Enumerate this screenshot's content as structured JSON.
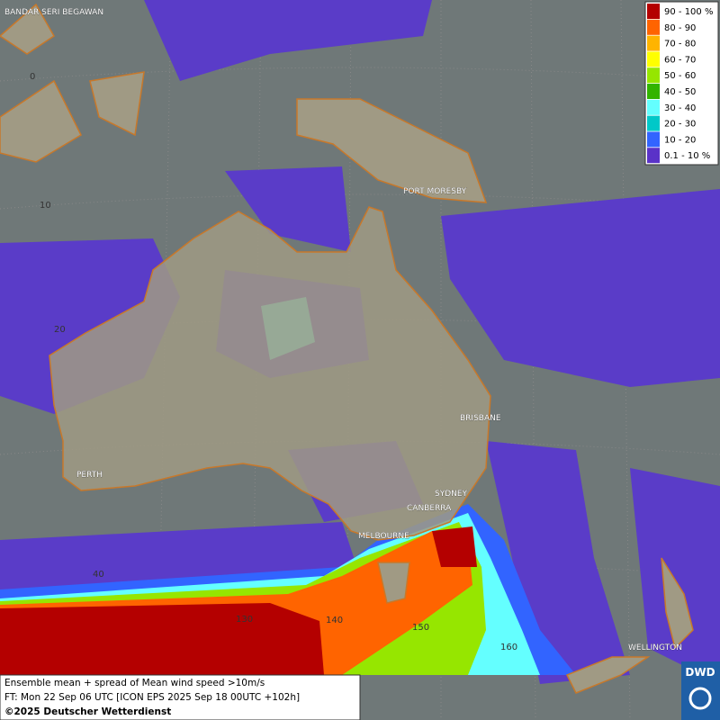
{
  "legend": {
    "items": [
      {
        "label": "90 - 100 %"
      },
      {
        "label": "80 - 90"
      },
      {
        "label": "70 - 80"
      },
      {
        "label": "60 - 70"
      },
      {
        "label": "50 - 60"
      },
      {
        "label": "40 - 50"
      },
      {
        "label": "30 - 40"
      },
      {
        "label": "20 - 30"
      },
      {
        "label": "10 - 20"
      },
      {
        "label": "0.1 - 10 %"
      }
    ]
  },
  "places": [
    "BANDAR SERI BEGAWAN",
    "PORT MORESBY",
    "BRISBANE",
    "PERTH",
    "SYDNEY",
    "CANBERRA",
    "MELBOURNE",
    "WELLINGTON"
  ],
  "grid_labels": [
    "0",
    "10",
    "20",
    "40",
    "130",
    "140",
    "150",
    "160"
  ],
  "caption": {
    "line1": "Ensemble mean + spread of Mean wind speed >10m/s",
    "line2": "FT: Mon 22 Sep 06 UTC [ICON EPS 2025 Sep 18 00UTC +102h]",
    "copyright": "©2025 Deutscher Wetterdienst"
  },
  "logo": "DWD"
}
